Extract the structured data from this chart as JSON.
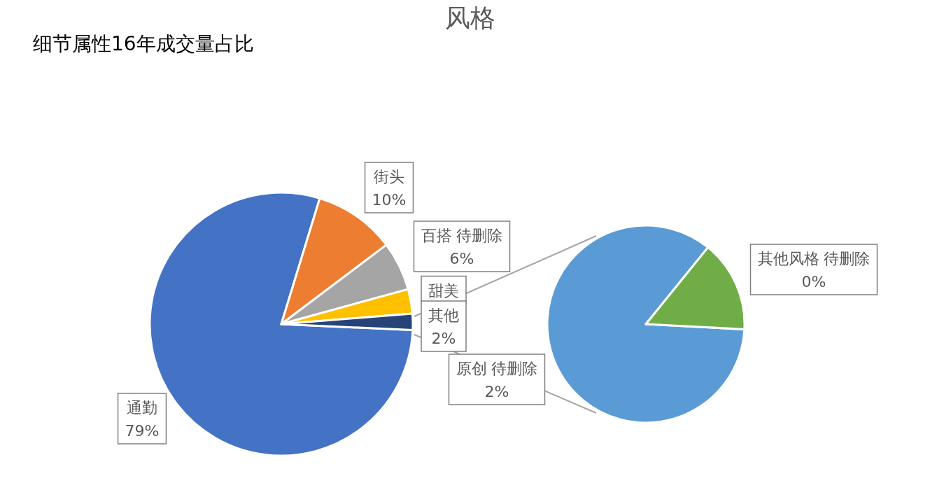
{
  "chart_data": [
    {
      "type": "pie",
      "title": "风格",
      "subtitle": "细节属性16年成交量占比",
      "categories": [
        "通勤",
        "街头",
        "百搭 待删除",
        "甜美",
        "其他"
      ],
      "values": [
        79,
        10,
        6,
        3,
        2
      ],
      "value_labels": [
        "79%",
        "10%",
        "6%",
        null,
        "2%"
      ],
      "colors": [
        "#4472c4",
        "#ed7d31",
        "#a5a5a5",
        "#ffc000",
        "#264478"
      ]
    },
    {
      "type": "pie",
      "categories": [
        "原创 待删除",
        "其他风格 待删除"
      ],
      "values": [
        1.7,
        0.3
      ],
      "value_labels": [
        "2%",
        "0%"
      ],
      "colors": [
        "#5b9bd5",
        "#70ad47"
      ]
    }
  ]
}
